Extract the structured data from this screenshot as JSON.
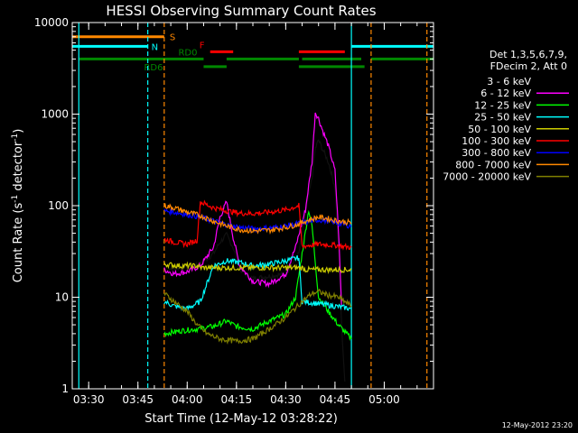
{
  "chart_data": {
    "type": "line",
    "title": "HESSI Observing Summary Count Rates",
    "xlabel": "Start Time (12-May-12 03:28:22)",
    "ylabel_main": "Count Rate (s",
    "ylabel_sup1": "-1",
    "ylabel_mid": " detector",
    "ylabel_sup2": "-1",
    "ylabel_end": ")",
    "yscale": "log",
    "ylim": [
      1,
      10000
    ],
    "xlim": [
      "03:25",
      "05:15"
    ],
    "x_ticks": [
      "03:30",
      "03:45",
      "04:00",
      "04:15",
      "04:30",
      "04:45",
      "05:00"
    ],
    "y_ticks": [
      "1",
      "10",
      "100",
      "1000",
      "10000"
    ],
    "legend": {
      "placement": "right",
      "header1": "Det 1,3,5,6,7,9,",
      "header2": "FDecim 2, Att 0"
    },
    "timestamp": "12-May-2012 23:20",
    "series": [
      {
        "name": "3 - 6 keV",
        "color": "#000000",
        "points": [
          [
            "03:53",
            19
          ],
          [
            "03:55",
            20
          ],
          [
            "04:00",
            22
          ],
          [
            "04:04",
            23
          ],
          [
            "04:08",
            30
          ],
          [
            "04:10",
            40
          ],
          [
            "04:12",
            48
          ],
          [
            "04:14",
            35
          ],
          [
            "04:16",
            20
          ],
          [
            "04:20",
            16
          ],
          [
            "04:25",
            17
          ],
          [
            "04:30",
            18
          ],
          [
            "04:34",
            30
          ],
          [
            "04:36",
            80
          ],
          [
            "04:38",
            200
          ],
          [
            "04:39",
            420
          ],
          [
            "04:40",
            520
          ],
          [
            "04:41",
            430
          ],
          [
            "04:43",
            300
          ],
          [
            "04:45",
            160
          ],
          [
            "04:46",
            40
          ],
          [
            "04:47",
            5
          ],
          [
            "04:48",
            1.2
          ]
        ]
      },
      {
        "name": "6 - 12 keV",
        "color": "#ff00ff",
        "points": [
          [
            "03:53",
            20
          ],
          [
            "03:56",
            18
          ],
          [
            "04:00",
            19
          ],
          [
            "04:04",
            22
          ],
          [
            "04:08",
            35
          ],
          [
            "04:10",
            75
          ],
          [
            "04:12",
            110
          ],
          [
            "04:14",
            45
          ],
          [
            "04:16",
            22
          ],
          [
            "04:20",
            15
          ],
          [
            "04:25",
            14
          ],
          [
            "04:30",
            18
          ],
          [
            "04:33",
            35
          ],
          [
            "04:36",
            90
          ],
          [
            "04:38",
            300
          ],
          [
            "04:39",
            1050
          ],
          [
            "04:40",
            900
          ],
          [
            "04:41",
            700
          ],
          [
            "04:43",
            450
          ],
          [
            "04:45",
            240
          ],
          [
            "04:46",
            60
          ],
          [
            "04:47",
            8
          ]
        ]
      },
      {
        "name": "12 - 25 keV",
        "color": "#00ff00",
        "points": [
          [
            "03:53",
            4
          ],
          [
            "03:58",
            4.3
          ],
          [
            "04:03",
            4.5
          ],
          [
            "04:08",
            4.8
          ],
          [
            "04:12",
            5.5
          ],
          [
            "04:15",
            4.8
          ],
          [
            "04:20",
            4.5
          ],
          [
            "04:25",
            5.5
          ],
          [
            "04:30",
            6.5
          ],
          [
            "04:33",
            10
          ],
          [
            "04:35",
            30
          ],
          [
            "04:37",
            90
          ],
          [
            "04:38",
            60
          ],
          [
            "04:40",
            10
          ],
          [
            "04:43",
            7
          ],
          [
            "04:46",
            5
          ],
          [
            "04:50",
            3.5
          ]
        ]
      },
      {
        "name": "25 - 50 keV",
        "color": "#00ffff",
        "points": [
          [
            "03:53",
            9
          ],
          [
            "03:56",
            8
          ],
          [
            "04:00",
            7.5
          ],
          [
            "04:04",
            9
          ],
          [
            "04:08",
            22
          ],
          [
            "04:12",
            25
          ],
          [
            "04:16",
            24
          ],
          [
            "04:20",
            22
          ],
          [
            "04:25",
            23
          ],
          [
            "04:30",
            25
          ],
          [
            "04:34",
            27
          ],
          [
            "04:35",
            9
          ],
          [
            "04:40",
            8.5
          ],
          [
            "04:45",
            8
          ],
          [
            "04:50",
            7.5
          ]
        ]
      },
      {
        "name": "50 - 100 keV",
        "color": "#cccc00",
        "points": [
          [
            "03:53",
            23
          ],
          [
            "03:58",
            22
          ],
          [
            "04:03",
            22
          ],
          [
            "04:04",
            21
          ],
          [
            "04:35",
            21
          ],
          [
            "04:36",
            20
          ],
          [
            "04:40",
            20
          ],
          [
            "04:45",
            20
          ],
          [
            "04:50",
            20
          ]
        ]
      },
      {
        "name": "100 - 300 keV",
        "color": "#ff0000",
        "points": [
          [
            "03:53",
            43
          ],
          [
            "03:56",
            40
          ],
          [
            "04:00",
            38
          ],
          [
            "04:03",
            42
          ],
          [
            "04:04",
            110
          ],
          [
            "04:08",
            95
          ],
          [
            "04:12",
            88
          ],
          [
            "04:16",
            83
          ],
          [
            "04:20",
            82
          ],
          [
            "04:25",
            85
          ],
          [
            "04:30",
            90
          ],
          [
            "04:34",
            100
          ],
          [
            "04:35",
            36
          ],
          [
            "04:40",
            38
          ],
          [
            "04:45",
            37
          ],
          [
            "04:50",
            35
          ]
        ]
      },
      {
        "name": "300 - 800 keV",
        "color": "#0000ff",
        "points": [
          [
            "03:53",
            88
          ],
          [
            "03:56",
            85
          ],
          [
            "04:00",
            80
          ],
          [
            "04:04",
            75
          ],
          [
            "04:08",
            68
          ],
          [
            "04:12",
            62
          ],
          [
            "04:16",
            58
          ],
          [
            "04:20",
            56
          ],
          [
            "04:25",
            57
          ],
          [
            "04:30",
            60
          ],
          [
            "04:34",
            64
          ],
          [
            "04:36",
            66
          ],
          [
            "04:40",
            70
          ],
          [
            "04:43",
            68
          ],
          [
            "04:46",
            64
          ],
          [
            "04:50",
            60
          ]
        ]
      },
      {
        "name": "800 - 7000 keV",
        "color": "#ff8800",
        "points": [
          [
            "03:53",
            100
          ],
          [
            "03:56",
            95
          ],
          [
            "04:00",
            85
          ],
          [
            "04:04",
            78
          ],
          [
            "04:08",
            68
          ],
          [
            "04:12",
            60
          ],
          [
            "04:16",
            55
          ],
          [
            "04:20",
            53
          ],
          [
            "04:25",
            54
          ],
          [
            "04:30",
            58
          ],
          [
            "04:34",
            63
          ],
          [
            "04:36",
            68
          ],
          [
            "04:40",
            75
          ],
          [
            "04:43",
            72
          ],
          [
            "04:46",
            68
          ],
          [
            "04:50",
            65
          ]
        ]
      },
      {
        "name": "7000 - 20000 keV",
        "color": "#808000",
        "points": [
          [
            "03:53",
            11
          ],
          [
            "03:56",
            9
          ],
          [
            "04:00",
            7
          ],
          [
            "04:03",
            5
          ],
          [
            "04:06",
            4
          ],
          [
            "04:10",
            3.5
          ],
          [
            "04:15",
            3.3
          ],
          [
            "04:20",
            3.5
          ],
          [
            "04:25",
            4.5
          ],
          [
            "04:30",
            6
          ],
          [
            "04:35",
            9
          ],
          [
            "04:38",
            11
          ],
          [
            "04:40",
            11.5
          ],
          [
            "04:43",
            10.5
          ],
          [
            "04:46",
            10
          ],
          [
            "04:50",
            8
          ]
        ]
      }
    ],
    "flag_bars": [
      {
        "label": "S",
        "color": "#ff8800",
        "y": 7000,
        "segments": [
          [
            "03:25",
            "03:53"
          ]
        ]
      },
      {
        "label": "N",
        "color": "#00ffff",
        "y": 5500,
        "segments": [
          [
            "03:25",
            "03:48"
          ],
          [
            "04:50",
            "05:15"
          ]
        ]
      },
      {
        "label": "RD0",
        "color": "#008800",
        "y": 4000,
        "segments": [
          [
            "03:27",
            "04:05"
          ],
          [
            "04:12",
            "04:34"
          ],
          [
            "04:35",
            "04:53"
          ],
          [
            "04:56",
            "05:15"
          ]
        ]
      },
      {
        "label": "RD6",
        "color": "#008800",
        "y": 3300,
        "segments": [
          [
            "04:05",
            "04:12"
          ],
          [
            "04:34",
            "04:54"
          ]
        ]
      },
      {
        "label": "F",
        "color": "#ff0000",
        "y": 4800,
        "segments": [
          [
            "04:07",
            "04:14"
          ],
          [
            "04:34",
            "04:48"
          ]
        ]
      }
    ],
    "vlines": [
      {
        "time": "03:27",
        "color": "#00ffff",
        "dash": false
      },
      {
        "time": "03:48",
        "color": "#00ffff",
        "dash": true
      },
      {
        "time": "03:53",
        "color": "#ff8800",
        "dash": true
      },
      {
        "time": "04:50",
        "color": "#00ffff",
        "dash": false
      },
      {
        "time": "04:56",
        "color": "#ff8800",
        "dash": true
      },
      {
        "time": "05:13",
        "color": "#ff8800",
        "dash": true
      }
    ]
  }
}
